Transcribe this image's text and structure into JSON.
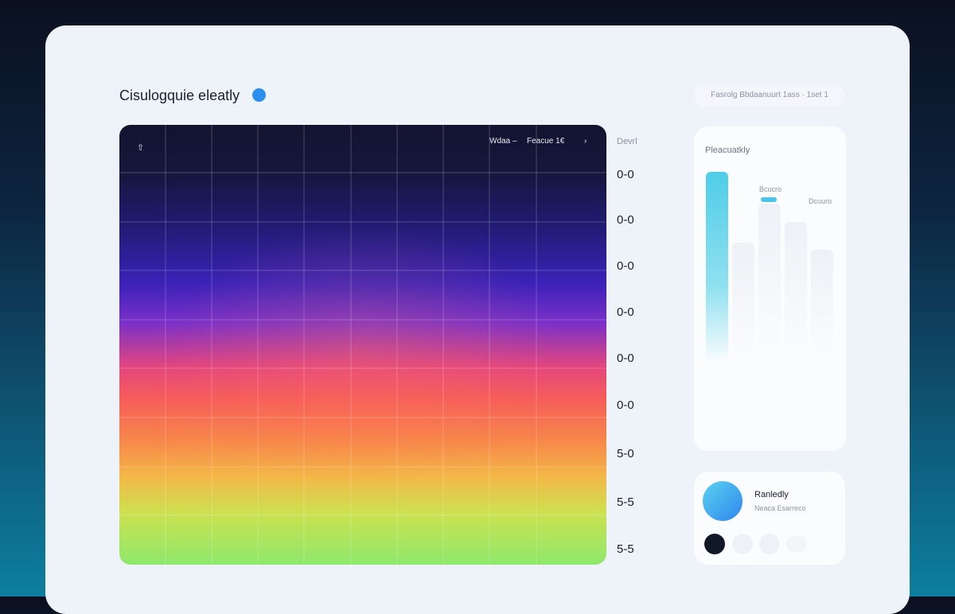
{
  "header": {
    "title": "Cisulogquie eleatly",
    "toolbar": "Fasrolg Bbdaanuurt  1ass  · 1set 1"
  },
  "heatmap": {
    "corner_icon": "⇧",
    "legend_left": "Wdaa  –",
    "legend_right": "Feacue 1€",
    "legend_arrow": "›",
    "scale_title": "Devrl",
    "scale_labels": [
      "0-0",
      "0-0",
      "0-0",
      "0-0",
      "0-0",
      "0-0",
      "5-0",
      "5-5",
      "5-5"
    ]
  },
  "side_card": {
    "title": "Pleacuatkly",
    "label_a": "Bcucro",
    "label_b": "Dcuuro"
  },
  "profile_card": {
    "name": "Ranledly",
    "subtitle": "Neaca Esarreco"
  }
}
